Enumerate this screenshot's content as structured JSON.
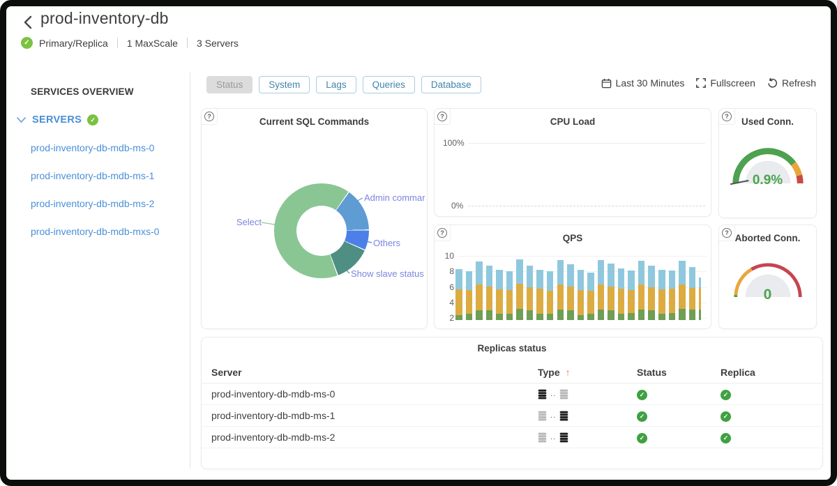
{
  "header": {
    "title": "prod-inventory-db",
    "topology": "Primary/Replica",
    "maxscale": "1 MaxScale",
    "servers": "3 Servers"
  },
  "sidebar": {
    "title": "SERVICES OVERVIEW",
    "group_label": "SERVERS",
    "items": [
      {
        "label": "prod-inventory-db-mdb-ms-0"
      },
      {
        "label": "prod-inventory-db-mdb-ms-1"
      },
      {
        "label": "prod-inventory-db-mdb-ms-2"
      },
      {
        "label": "prod-inventory-db-mdb-mxs-0"
      }
    ]
  },
  "tabs": [
    {
      "label": "Status",
      "active": true
    },
    {
      "label": "System",
      "active": false
    },
    {
      "label": "Lags",
      "active": false
    },
    {
      "label": "Queries",
      "active": false
    },
    {
      "label": "Database",
      "active": false
    }
  ],
  "toolbar": {
    "time_range": "Last 30 Minutes",
    "fullscreen": "Fullscreen",
    "refresh": "Refresh"
  },
  "icons": {
    "help": "?",
    "sort_asc": "↑",
    "type_separator": ".."
  },
  "colors": {
    "link_blue": "#4A90D9",
    "tab_blue": "#4184AE",
    "active_tab_bg": "#DCDCDC",
    "check_green_light": "#7CC242",
    "check_green_dark": "#3FA142",
    "gauge_value_green": "#4BA44E",
    "sort_arrow": "#E4795C",
    "donut_label": "#7D84E0"
  },
  "table": {
    "title": "Replicas status",
    "columns": [
      "Server",
      "Type",
      "Status",
      "Replica"
    ],
    "sorted_by": "Type",
    "rows": [
      {
        "server": "prod-inventory-db-mdb-ms-0",
        "type_icons": [
          "dark",
          "light"
        ],
        "status": "ok",
        "replica": "ok"
      },
      {
        "server": "prod-inventory-db-mdb-ms-1",
        "type_icons": [
          "light",
          "dark"
        ],
        "status": "ok",
        "replica": "ok"
      },
      {
        "server": "prod-inventory-db-mdb-ms-2",
        "type_icons": [
          "light",
          "dark"
        ],
        "status": "ok",
        "replica": "ok"
      }
    ]
  },
  "chart_data": [
    {
      "id": "current_sql_commands",
      "type": "pie",
      "title": "Current SQL Commands",
      "labels": [
        "Select",
        "Admin commar",
        "Others",
        "Show slave status"
      ],
      "values_pct": [
        64,
        15,
        7,
        14
      ],
      "colors": [
        "#89C694",
        "#5E9CD3",
        "#4C80E8",
        "#4E8E83"
      ],
      "label_color": "#7D84E0",
      "gradient_stops": [
        [
          "#89C694",
          0,
          34.4
        ],
        [
          "#FFFFFF",
          34.4,
          35.6
        ],
        [
          "#5E9CD3",
          35.6,
          88.4
        ],
        [
          "#FFFFFF",
          88.4,
          89.6
        ],
        [
          "#4C80E8",
          89.6,
          113.4
        ],
        [
          "#FFFFFF",
          113.4,
          114.6
        ],
        [
          "#4E8E83",
          114.6,
          159.4
        ],
        [
          "#FFFFFF",
          159.4,
          160.6
        ],
        [
          "#89C694",
          160.6,
          360
        ]
      ]
    },
    {
      "id": "cpu_load",
      "type": "line",
      "title": "CPU Load",
      "yticks": [
        "100%",
        "0%"
      ],
      "ylim": [
        0,
        100
      ],
      "series": [
        {
          "name": "CPU Load",
          "approx_constant_value": 0,
          "note": "flat line at ~0% across window"
        }
      ]
    },
    {
      "id": "used_conn",
      "type": "gauge",
      "title": "Used Conn.",
      "value": "0.9%",
      "value_num": 0.9,
      "min": 0,
      "max": 100,
      "segments": [
        {
          "color": "#4DA14F",
          "to": 79
        },
        {
          "color": "#E9A63C",
          "to": 92
        },
        {
          "color": "#C84B42",
          "to": 100
        }
      ]
    },
    {
      "id": "qps",
      "type": "stacked_bar",
      "title": "QPS",
      "yticks": [
        "10",
        "8",
        "6",
        "4",
        "2"
      ],
      "ylim": [
        2,
        10
      ],
      "colors": {
        "bottom": "#6F9E55",
        "middle": "#DCAC42",
        "top": "#8FC8DE"
      },
      "bars": [
        {
          "green": 2.4,
          "yellow": 5.7,
          "total": 8.3
        },
        {
          "green": 2.5,
          "yellow": 5.6,
          "total": 8.0
        },
        {
          "green": 3.0,
          "yellow": 6.3,
          "total": 9.3
        },
        {
          "green": 3.0,
          "yellow": 6.1,
          "total": 8.8
        },
        {
          "green": 2.5,
          "yellow": 5.7,
          "total": 8.2
        },
        {
          "green": 2.5,
          "yellow": 5.6,
          "total": 8.0
        },
        {
          "green": 3.2,
          "yellow": 6.4,
          "total": 9.6
        },
        {
          "green": 3.0,
          "yellow": 6.0,
          "total": 8.8
        },
        {
          "green": 2.5,
          "yellow": 5.8,
          "total": 8.2
        },
        {
          "green": 2.5,
          "yellow": 5.5,
          "total": 8.0
        },
        {
          "green": 3.1,
          "yellow": 6.3,
          "total": 9.5
        },
        {
          "green": 3.0,
          "yellow": 6.1,
          "total": 8.9
        },
        {
          "green": 2.4,
          "yellow": 5.6,
          "total": 8.2
        },
        {
          "green": 2.5,
          "yellow": 5.5,
          "total": 7.9
        },
        {
          "green": 3.1,
          "yellow": 6.3,
          "total": 9.5
        },
        {
          "green": 3.0,
          "yellow": 6.1,
          "total": 9.0
        },
        {
          "green": 2.5,
          "yellow": 5.8,
          "total": 8.4
        },
        {
          "green": 2.6,
          "yellow": 5.6,
          "total": 8.1
        },
        {
          "green": 3.1,
          "yellow": 6.3,
          "total": 9.4
        },
        {
          "green": 3.0,
          "yellow": 6.0,
          "total": 8.8
        },
        {
          "green": 2.5,
          "yellow": 5.7,
          "total": 8.2
        },
        {
          "green": 2.6,
          "yellow": 5.8,
          "total": 8.1
        },
        {
          "green": 3.2,
          "yellow": 6.3,
          "total": 9.4
        },
        {
          "green": 3.1,
          "yellow": 5.9,
          "total": 8.6
        },
        {
          "green": 3.1,
          "yellow": 5.9,
          "total": 7.2,
          "narrow": true
        }
      ]
    },
    {
      "id": "aborted_conn",
      "type": "gauge",
      "title": "Aborted Conn.",
      "value": "0",
      "value_num": 0,
      "min": 0,
      "max": 100,
      "segments": [
        {
          "color": "#4DA14F",
          "to": 2
        },
        {
          "color": "#E9A63C",
          "to": 33
        },
        {
          "color": "#C64550",
          "to": 100
        }
      ]
    }
  ]
}
